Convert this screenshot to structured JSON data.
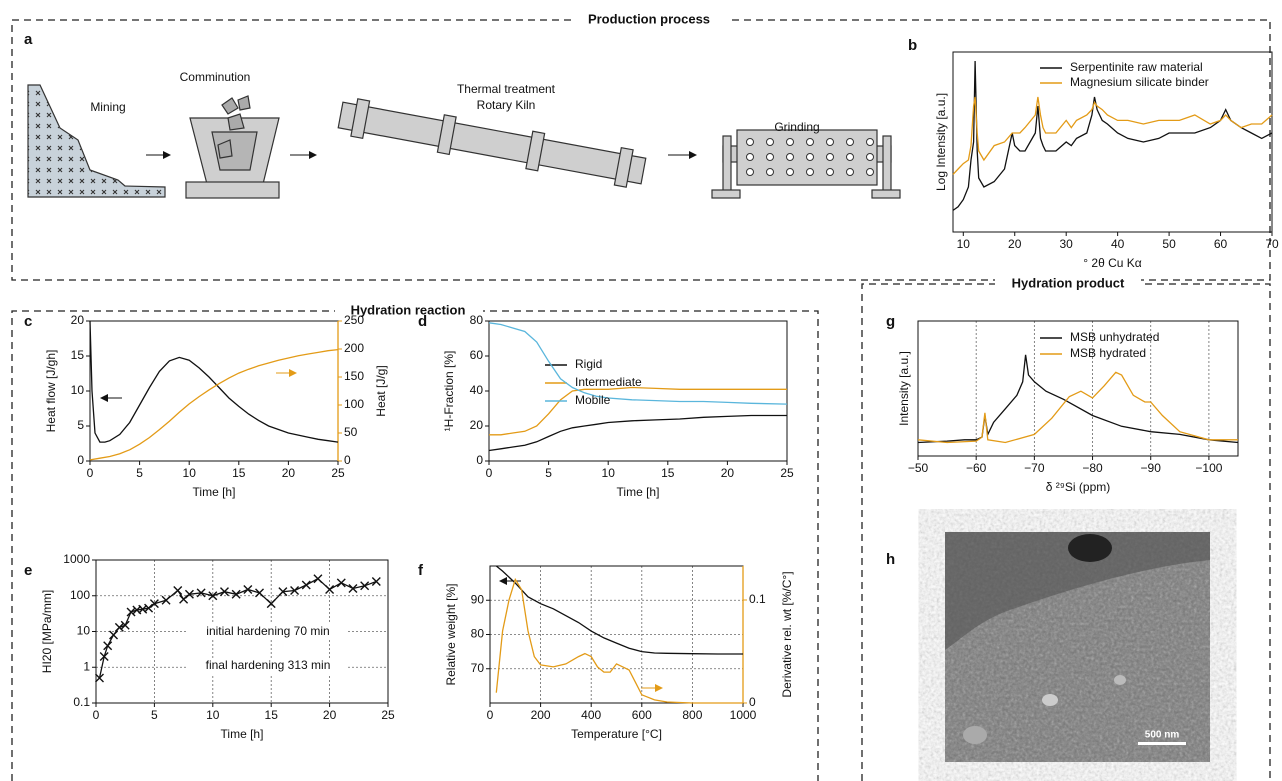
{
  "sections": {
    "production": "Production process",
    "hydration_reaction": "Hydration reaction",
    "hydration_product": "Hydration product"
  },
  "panel_labels": [
    "a",
    "b",
    "c",
    "d",
    "e",
    "f",
    "g",
    "h"
  ],
  "process": {
    "mining": "Mining",
    "comminution": "Comminution",
    "kiln": [
      "Thermal treatment",
      "Rotary Kiln"
    ],
    "grinding": "Grinding"
  },
  "sem": {
    "scale_bar": "500 nm"
  },
  "chart_data": [
    {
      "type": "line",
      "xlabel": "° 2θ Cu Kα",
      "ylabel": "Log Intensity [a.u.]",
      "xlim": [
        8,
        70
      ],
      "xticks": [
        10,
        20,
        30,
        40,
        50,
        60,
        70
      ],
      "ylim": [
        0,
        100
      ],
      "legend": "upper right",
      "x": [
        8,
        9,
        10,
        11,
        11.5,
        12,
        12.3,
        12.7,
        13,
        14,
        16,
        18,
        19.5,
        20,
        21,
        22,
        24,
        24.5,
        25,
        25.5,
        26,
        28,
        30,
        31,
        32,
        34,
        35,
        35.5,
        36,
        37,
        38,
        40,
        42,
        45,
        48,
        50,
        52,
        55,
        58,
        60,
        61,
        62,
        64,
        66,
        68,
        70
      ],
      "series": [
        {
          "name": "Serpentinite raw material",
          "color": "#111111",
          "values": [
            12,
            14,
            18,
            25,
            40,
            50,
            95,
            45,
            30,
            25,
            28,
            35,
            55,
            48,
            45,
            45,
            55,
            70,
            52,
            48,
            45,
            45,
            50,
            48,
            52,
            55,
            65,
            75,
            68,
            62,
            60,
            55,
            52,
            50,
            52,
            55,
            55,
            55,
            58,
            62,
            68,
            62,
            58,
            55,
            52,
            55
          ]
        },
        {
          "name": "Magnesium silicate binder",
          "color": "#e39b17",
          "values": [
            32,
            35,
            38,
            40,
            48,
            70,
            75,
            55,
            45,
            40,
            48,
            50,
            55,
            55,
            55,
            58,
            65,
            75,
            65,
            58,
            55,
            55,
            62,
            58,
            62,
            65,
            68,
            72,
            70,
            68,
            65,
            62,
            62,
            60,
            62,
            62,
            62,
            65,
            60,
            62,
            65,
            62,
            58,
            60,
            60,
            65
          ]
        }
      ]
    },
    {
      "type": "line",
      "xlabel": "Time [h]",
      "ylabel": "Heat flow [J/gh]",
      "y2label": "Heat [J/g]",
      "xlim": [
        0,
        25
      ],
      "xticks": [
        0,
        5,
        10,
        15,
        20,
        25
      ],
      "ylim": [
        0,
        20
      ],
      "yticks": [
        0,
        5,
        10,
        15,
        20
      ],
      "y2lim": [
        0,
        250
      ],
      "y2ticks": [
        0,
        50,
        100,
        150,
        200,
        250
      ],
      "y2color": "#e39b17",
      "series": [
        {
          "color": "#111111",
          "x": [
            0,
            0.2,
            0.5,
            1,
            1.5,
            2,
            3,
            4,
            5,
            6,
            7,
            8,
            9,
            10,
            11,
            12,
            13,
            14,
            15,
            16,
            17,
            18,
            19,
            20,
            21,
            22,
            23,
            24,
            25
          ],
          "values": [
            20,
            10,
            4,
            2.7,
            2.7,
            2.9,
            3.8,
            5.5,
            8,
            10.5,
            12.8,
            14.3,
            14.8,
            14.4,
            13.3,
            12,
            10.5,
            9,
            7.8,
            6.7,
            5.8,
            5,
            4.5,
            4,
            3.7,
            3.4,
            3.1,
            2.9,
            2.7
          ]
        },
        {
          "color": "#e39b17",
          "axis": "y2",
          "x": [
            0,
            1,
            2,
            3,
            4,
            5,
            6,
            7,
            8,
            9,
            10,
            11,
            12,
            13,
            14,
            15,
            16,
            17,
            18,
            19,
            20,
            21,
            22,
            23,
            24,
            25
          ],
          "values": [
            2,
            5,
            8,
            13,
            20,
            30,
            42,
            56,
            71,
            87,
            102,
            115,
            127,
            138,
            148,
            157,
            164,
            170,
            175,
            180,
            184,
            188,
            191,
            194,
            197,
            199
          ]
        }
      ]
    },
    {
      "type": "line",
      "xlabel": "Time [h]",
      "ylabel": "¹H-Fraction [%]",
      "xlim": [
        0,
        25
      ],
      "xticks": [
        0,
        5,
        10,
        15,
        20,
        25
      ],
      "ylim": [
        0,
        80
      ],
      "yticks": [
        0,
        20,
        40,
        60,
        80
      ],
      "legend": "upper right",
      "x": [
        0,
        1,
        2,
        3,
        4,
        5,
        6,
        7,
        8,
        9,
        10,
        12,
        14,
        16,
        18,
        20,
        22,
        25
      ],
      "series": [
        {
          "name": "Rigid",
          "color": "#111111",
          "values": [
            6,
            7,
            8,
            9,
            11,
            14,
            17,
            19,
            20,
            21,
            22,
            23,
            23.5,
            24,
            25,
            25.5,
            26,
            26
          ]
        },
        {
          "name": "Intermediate",
          "color": "#e39b17",
          "values": [
            15,
            15,
            16,
            17,
            20,
            27,
            35,
            40,
            41,
            41,
            41,
            42,
            41.5,
            41,
            41,
            41,
            41,
            41
          ]
        },
        {
          "name": "Mobile",
          "color": "#5ab6dc",
          "values": [
            79,
            78,
            76,
            74,
            68,
            57,
            47,
            42,
            39,
            37,
            36,
            35,
            34.5,
            34,
            34,
            33.5,
            33,
            32.5
          ]
        }
      ]
    },
    {
      "type": "line",
      "xlabel": "Time [h]",
      "ylabel": "HI20 [MPa/mm]",
      "xlim": [
        0,
        25
      ],
      "xticks": [
        0,
        5,
        10,
        15,
        20,
        25
      ],
      "ylim": [
        0.1,
        1000
      ],
      "yticks": [
        0.1,
        1,
        10,
        100,
        1000
      ],
      "yscale": "log",
      "grid": "both",
      "annotations": [
        "initial hardening 70 min",
        "final hardening 313 min"
      ],
      "series": [
        {
          "color": "#111111",
          "marker": "x",
          "x": [
            0.3,
            0.7,
            1,
            1.5,
            2,
            2.5,
            3,
            3.5,
            4,
            4.5,
            5,
            6,
            7,
            7.5,
            8,
            9,
            10,
            11,
            12,
            13,
            14,
            15,
            16,
            17,
            18,
            19,
            20,
            21,
            22,
            23,
            24
          ],
          "values": [
            0.5,
            2,
            4,
            8,
            13,
            15,
            35,
            40,
            42,
            45,
            60,
            75,
            140,
            80,
            110,
            120,
            100,
            130,
            110,
            150,
            120,
            60,
            130,
            140,
            200,
            300,
            150,
            230,
            160,
            190,
            250
          ]
        }
      ]
    },
    {
      "type": "line",
      "xlabel": "Temperature [°C]",
      "ylabel": "Relative weight [%]",
      "y2label": "Derivative rel. wt [%/C°]",
      "xlim": [
        0,
        1000
      ],
      "xticks": [
        0,
        200,
        400,
        600,
        800,
        1000
      ],
      "ylim": [
        60,
        100
      ],
      "yticks": [
        70,
        80,
        90
      ],
      "y2lim": [
        0,
        0.133
      ],
      "y2ticks": [
        0,
        0.1
      ],
      "y2color": "#e39b17",
      "grid": "both",
      "series": [
        {
          "color": "#111111",
          "x": [
            25,
            50,
            100,
            150,
            200,
            250,
            300,
            350,
            400,
            450,
            500,
            550,
            600,
            650,
            700,
            800,
            900,
            1000
          ],
          "values": [
            100,
            98.5,
            95,
            91,
            89,
            87.5,
            85.5,
            83.5,
            81,
            79,
            77.5,
            76,
            75,
            74.6,
            74.5,
            74.4,
            74.3,
            74.3
          ]
        },
        {
          "color": "#e39b17",
          "axis": "y2",
          "x": [
            25,
            50,
            75,
            100,
            125,
            150,
            175,
            200,
            250,
            300,
            350,
            375,
            400,
            425,
            450,
            475,
            500,
            525,
            550,
            575,
            600,
            650,
            700,
            800,
            900,
            1000
          ],
          "values": [
            0.01,
            0.07,
            0.1,
            0.12,
            0.11,
            0.07,
            0.045,
            0.037,
            0.035,
            0.038,
            0.045,
            0.048,
            0.045,
            0.035,
            0.03,
            0.03,
            0.038,
            0.035,
            0.032,
            0.02,
            0.008,
            0.003,
            0.001,
            0,
            0,
            0
          ]
        }
      ]
    },
    {
      "type": "line",
      "xlabel": "δ ²⁹Si (ppm)",
      "ylabel": "Intensity [a.u.]",
      "xlim": [
        -50,
        -105
      ],
      "xticks": [
        {
          "value": -50,
          "label": "−50"
        },
        {
          "value": -60,
          "label": "−60"
        },
        {
          "value": -70,
          "label": "−70"
        },
        {
          "value": -80,
          "label": "−80"
        },
        {
          "value": -90,
          "label": "−90"
        },
        {
          "value": -100,
          "label": "−100"
        }
      ],
      "ylim": [
        0,
        100
      ],
      "grid": "x",
      "legend": "upper right",
      "series": [
        {
          "name": "MSB unhydrated",
          "color": "#111111",
          "x": [
            -50,
            -55,
            -58,
            -60,
            -61,
            -61.5,
            -62,
            -63,
            -65,
            -67,
            -68,
            -68.5,
            -69,
            -70,
            -72,
            -75,
            -80,
            -85,
            -90,
            -95,
            -100,
            -105
          ],
          "values": [
            10,
            11,
            12,
            12,
            14,
            30,
            16,
            25,
            35,
            45,
            55,
            75,
            60,
            55,
            48,
            42,
            30,
            22,
            18,
            16,
            12,
            10
          ]
        },
        {
          "name": "MSB hydrated",
          "color": "#e39b17",
          "x": [
            -50,
            -55,
            -60,
            -61,
            -61.5,
            -62,
            -65,
            -70,
            -73,
            -76,
            -78,
            -80,
            -82,
            -84,
            -85,
            -87,
            -89,
            -90,
            -92,
            -95,
            -100,
            -105
          ],
          "values": [
            12,
            10,
            11,
            14,
            32,
            12,
            10,
            16,
            28,
            44,
            48,
            43,
            52,
            62,
            60,
            45,
            40,
            40,
            30,
            18,
            12,
            12
          ]
        }
      ]
    }
  ]
}
